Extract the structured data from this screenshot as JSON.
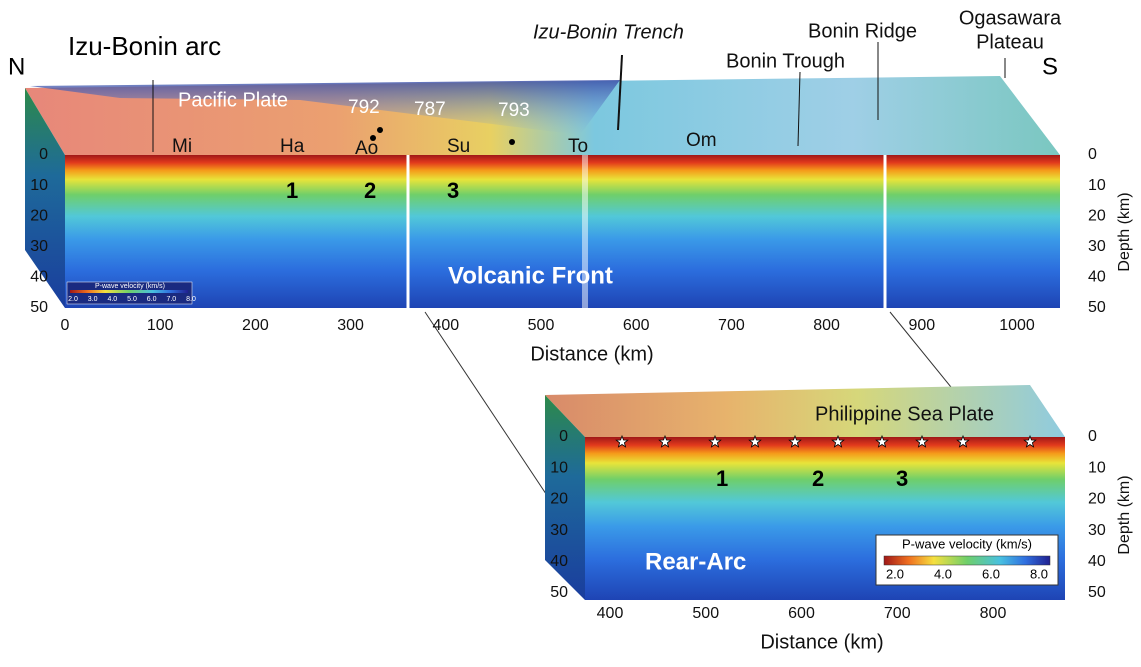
{
  "top_panel": {
    "title": "Izu-Bonin arc",
    "north": "N",
    "south": "S",
    "trench": "Izu-Bonin Trench",
    "trough": "Bonin Trough",
    "ridge": "Bonin Ridge",
    "plateau": [
      "Ogasawara",
      "Plateau"
    ],
    "plate": "Pacific Plate",
    "sites": [
      "792",
      "787",
      "793"
    ],
    "volcanoes": [
      "Mi",
      "Ha",
      "Ao",
      "Su",
      "To",
      "Om"
    ],
    "segments": [
      "1",
      "2",
      "3"
    ],
    "front": "Volcanic Front",
    "x_label": "Distance (km)",
    "y_label": "Depth (km)",
    "xticks": [
      0,
      100,
      200,
      300,
      400,
      500,
      600,
      700,
      800,
      900,
      1000
    ],
    "yticks": [
      0,
      10,
      20,
      30,
      40,
      50
    ],
    "legend": {
      "title": "P-wave velocity (km/s)",
      "ticks": [
        "2.0",
        "3.0",
        "4.0",
        "5.0",
        "6.0",
        "7.0",
        "8.0"
      ]
    }
  },
  "bottom_panel": {
    "plate": "Philippine Sea Plate",
    "region": "Rear-Arc",
    "segments": [
      "1",
      "2",
      "3"
    ],
    "x_label": "Distance (km)",
    "y_label": "Depth (km)",
    "xticks": [
      400,
      500,
      600,
      700,
      800
    ],
    "yticks": [
      0,
      10,
      20,
      30,
      40,
      50
    ],
    "legend": {
      "title": "P-wave velocity (km/s)",
      "ticks": [
        "2.0",
        "4.0",
        "6.0",
        "8.0"
      ]
    }
  }
}
